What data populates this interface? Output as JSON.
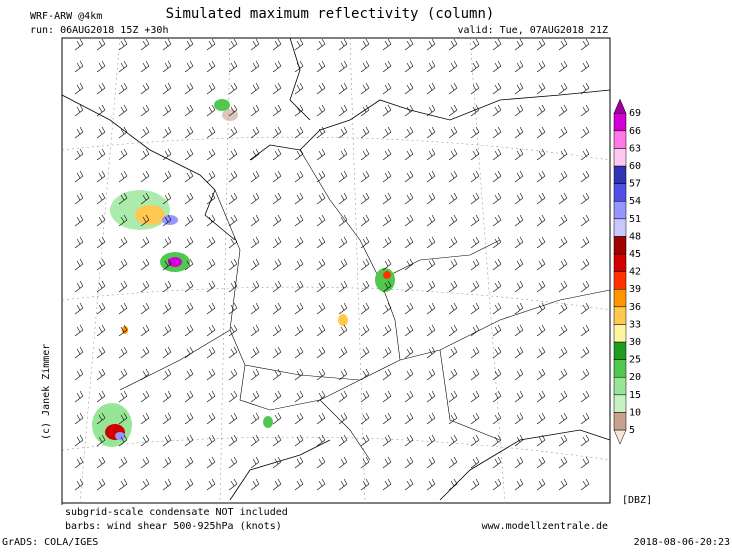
{
  "header": {
    "model": "WRF-ARW @4km",
    "title": "Simulated maximum reflectivity (column)",
    "run": "run: 06AUG2018 15Z +30h",
    "valid": "valid: Tue, 07AUG2018 21Z"
  },
  "map": {
    "copyright": "(c) Janek Zimmer"
  },
  "colorbar": {
    "unit": "[DBZ]",
    "levels": [
      5,
      10,
      15,
      20,
      25,
      30,
      33,
      36,
      39,
      42,
      45,
      48,
      51,
      54,
      57,
      60,
      63,
      66,
      69
    ],
    "colors": [
      "#f5e6dc",
      "#c8a08c",
      "#c8f0c0",
      "#96e696",
      "#50c850",
      "#1e9e1e",
      "#fff5a0",
      "#ffc850",
      "#ff9600",
      "#ff3200",
      "#d20000",
      "#a00000",
      "#c8c8ff",
      "#9696ff",
      "#5050e6",
      "#3232b4",
      "#ffc8f0",
      "#ff78e6",
      "#d200d2",
      "#a000a0"
    ]
  },
  "footer": {
    "note1": "subgrid-scale condensate NOT included",
    "note2": "barbs: wind shear 500-925hPa (knots)",
    "website": "www.modellzentrale.de",
    "software": "GrADS: COLA/IGES",
    "timestamp": "2018-08-06-20:23"
  }
}
